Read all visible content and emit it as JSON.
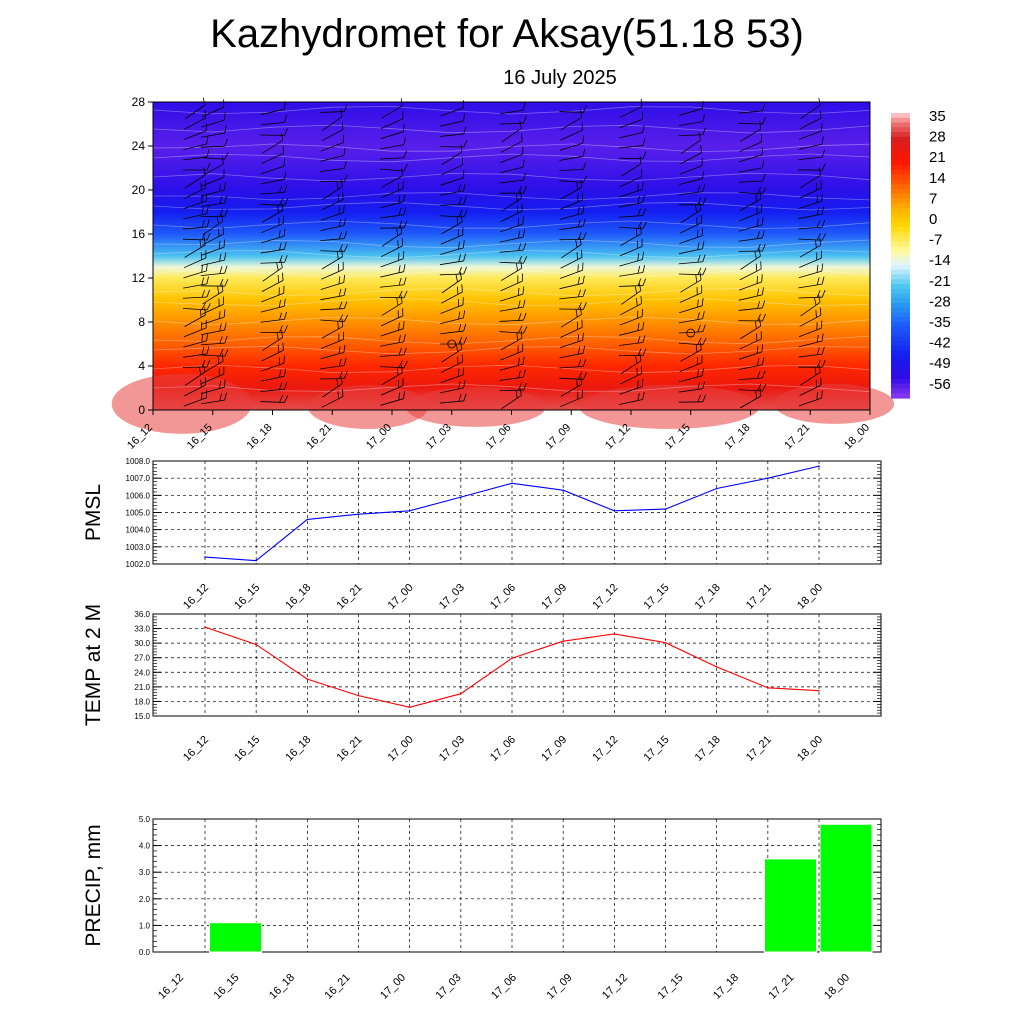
{
  "title": "Kazhydromet for Aksay(51.18 53)",
  "subtitle": "16 July 2025",
  "time_labels": [
    "16_12",
    "16_15",
    "16_18",
    "16_21",
    "17_00",
    "17_03",
    "17_06",
    "17_09",
    "17_12",
    "17_15",
    "17_18",
    "17_21",
    "18_00"
  ],
  "chart_data": [
    {
      "type": "heatmap",
      "title": "",
      "xlabel": "",
      "ylabel": "",
      "x": [
        "16_12",
        "16_15",
        "16_18",
        "16_21",
        "17_00",
        "17_03",
        "17_06",
        "17_09",
        "17_12",
        "17_15",
        "17_18",
        "17_21",
        "18_00"
      ],
      "y_ticks": [
        0,
        4,
        8,
        12,
        16,
        20,
        24,
        28
      ],
      "ylim": [
        0,
        28
      ],
      "value_profile": [
        [
          0,
          33
        ],
        [
          2,
          26
        ],
        [
          4,
          20
        ],
        [
          6,
          14
        ],
        [
          8,
          9
        ],
        [
          10,
          3
        ],
        [
          12,
          -5
        ],
        [
          13,
          -12
        ],
        [
          14,
          -22
        ],
        [
          16,
          -35
        ],
        [
          18,
          -45
        ],
        [
          20,
          -51
        ],
        [
          24,
          -56
        ],
        [
          28,
          -52
        ]
      ],
      "colorbar": {
        "labels": [
          "35",
          "28",
          "21",
          "14",
          "7",
          "0",
          "-7",
          "-14",
          "-21",
          "-28",
          "-35",
          "-42",
          "-49",
          "-56"
        ],
        "range": [
          -60,
          39
        ]
      },
      "overlays": "wind barbs and contour lines",
      "grid": false
    },
    {
      "type": "line",
      "ylabel": "PMSL",
      "x": [
        "16_12",
        "16_15",
        "16_18",
        "16_21",
        "17_00",
        "17_03",
        "17_06",
        "17_09",
        "17_12",
        "17_15",
        "17_18",
        "17_21",
        "18_00"
      ],
      "series": [
        {
          "color": "#0000ff",
          "values": [
            1002.4,
            1002.2,
            1004.6,
            1004.9,
            1005.1,
            1005.9,
            1006.7,
            1006.3,
            1005.1,
            1005.2,
            1006.4,
            1007.0,
            1007.7
          ]
        }
      ],
      "ylim": [
        1002.0,
        1008.0
      ],
      "y_ticks": [
        "1002.0",
        "1003.0",
        "1004.0",
        "1005.0",
        "1006.0",
        "1007.0",
        "1008.0"
      ],
      "grid": true
    },
    {
      "type": "line",
      "ylabel": "TEMP at 2 M",
      "x": [
        "16_12",
        "16_15",
        "16_18",
        "16_21",
        "17_00",
        "17_03",
        "17_06",
        "17_09",
        "17_12",
        "17_15",
        "17_18",
        "17_21",
        "18_00"
      ],
      "series": [
        {
          "color": "#ff0000",
          "values": [
            33.3,
            29.7,
            22.6,
            19.2,
            16.8,
            19.6,
            26.9,
            30.4,
            31.9,
            30.1,
            25.1,
            20.8,
            20.2
          ]
        }
      ],
      "ylim": [
        15.0,
        36.0
      ],
      "y_ticks": [
        "15.0",
        "18.0",
        "21.0",
        "24.0",
        "27.0",
        "30.0",
        "33.0",
        "36.0"
      ],
      "grid": true
    },
    {
      "type": "bar",
      "ylabel": "PRECIP, mm",
      "categories": [
        "16_12",
        "16_15",
        "16_18",
        "16_21",
        "17_00",
        "17_03",
        "17_06",
        "17_09",
        "17_12",
        "17_15",
        "17_18",
        "17_21",
        "18_00"
      ],
      "values": [
        0,
        1.1,
        0,
        0,
        0,
        0,
        0,
        0,
        0,
        0,
        0,
        3.5,
        4.8
      ],
      "color": "#00ff00",
      "ylim": [
        0,
        5.0
      ],
      "y_ticks": [
        "0.0",
        "1.0",
        "2.0",
        "3.0",
        "4.0",
        "5.0"
      ],
      "grid": true
    }
  ]
}
